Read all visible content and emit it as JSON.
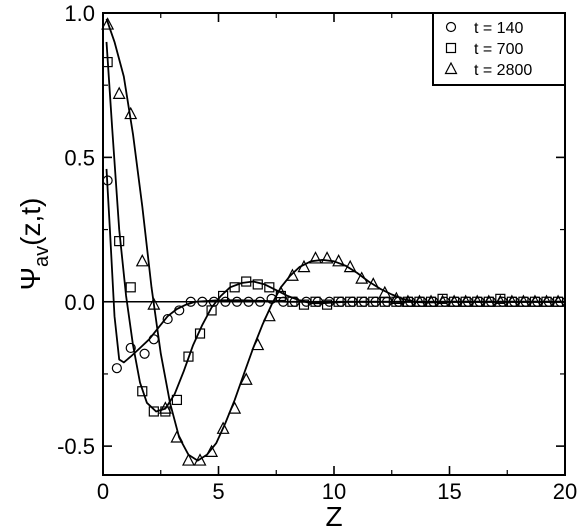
{
  "chart_data": {
    "type": "line",
    "xlabel": "Z",
    "ylabel_main": "Ψ",
    "ylabel_sub": "av",
    "ylabel_tail": "(z,t)",
    "xlim": [
      0,
      20
    ],
    "ylim": [
      -0.6,
      1.0
    ],
    "x_ticks": [
      0,
      5,
      10,
      15,
      20
    ],
    "x_tick_labels": [
      "0",
      "5",
      "10",
      "15",
      "20"
    ],
    "y_ticks": [
      1.0,
      0.5,
      0.0,
      -0.5
    ],
    "y_tick_labels": [
      "1.0",
      "0.5",
      "0.0",
      "-0.5"
    ],
    "grid": false,
    "zero_line": true,
    "legend_position": "top-right",
    "series": [
      {
        "name": "t = 140",
        "marker": "circle",
        "points": [
          [
            0.2,
            0.42
          ],
          [
            0.6,
            -0.23
          ],
          [
            1.2,
            -0.16
          ],
          [
            1.8,
            -0.18
          ],
          [
            2.2,
            -0.13
          ],
          [
            2.8,
            -0.06
          ],
          [
            3.3,
            -0.03
          ],
          [
            3.8,
            0.0
          ],
          [
            4.3,
            0.0
          ],
          [
            4.8,
            0.0
          ],
          [
            5.3,
            0.0
          ],
          [
            5.8,
            0.0
          ],
          [
            6.3,
            0.0
          ],
          [
            6.8,
            0.0
          ],
          [
            7.3,
            0.01
          ],
          [
            7.8,
            0.0
          ],
          [
            8.3,
            0.0
          ],
          [
            8.8,
            0.0
          ],
          [
            9.3,
            0.0
          ],
          [
            9.8,
            0.0
          ],
          [
            10.3,
            0.0
          ],
          [
            10.8,
            0.0
          ],
          [
            11.3,
            0.0
          ],
          [
            11.8,
            0.0
          ],
          [
            12.3,
            0.0
          ],
          [
            12.8,
            0.0
          ],
          [
            13.3,
            0.0
          ],
          [
            13.8,
            0.0
          ],
          [
            14.3,
            0.0
          ],
          [
            14.8,
            0.0
          ],
          [
            15.3,
            0.0
          ],
          [
            15.8,
            0.0
          ],
          [
            16.3,
            0.0
          ],
          [
            16.8,
            0.0
          ],
          [
            17.3,
            0.0
          ],
          [
            17.8,
            0.0
          ],
          [
            18.3,
            0.0
          ],
          [
            18.8,
            0.0
          ],
          [
            19.3,
            0.0
          ],
          [
            19.8,
            0.0
          ]
        ],
        "fit": [
          [
            0.15,
            0.46
          ],
          [
            0.3,
            0.25
          ],
          [
            0.5,
            -0.05
          ],
          [
            0.7,
            -0.2
          ],
          [
            0.9,
            -0.21
          ],
          [
            1.2,
            -0.19
          ],
          [
            1.6,
            -0.16
          ],
          [
            2.0,
            -0.13
          ],
          [
            2.4,
            -0.09
          ],
          [
            2.8,
            -0.05
          ],
          [
            3.2,
            -0.025
          ],
          [
            3.6,
            -0.01
          ],
          [
            4.0,
            0.0
          ],
          [
            5.0,
            0.005
          ],
          [
            6.0,
            0.005
          ],
          [
            7.0,
            0.003
          ],
          [
            8.0,
            0.0
          ],
          [
            10.0,
            0.0
          ],
          [
            20.0,
            0.0
          ]
        ]
      },
      {
        "name": "t = 700",
        "marker": "square",
        "points": [
          [
            0.2,
            0.83
          ],
          [
            0.7,
            0.21
          ],
          [
            1.2,
            0.05
          ],
          [
            1.7,
            -0.31
          ],
          [
            2.2,
            -0.38
          ],
          [
            2.7,
            -0.38
          ],
          [
            3.2,
            -0.34
          ],
          [
            3.7,
            -0.19
          ],
          [
            4.2,
            -0.11
          ],
          [
            4.7,
            -0.03
          ],
          [
            5.2,
            0.02
          ],
          [
            5.7,
            0.05
          ],
          [
            6.2,
            0.07
          ],
          [
            6.7,
            0.06
          ],
          [
            7.2,
            0.05
          ],
          [
            7.7,
            0.02
          ],
          [
            8.2,
            0.0
          ],
          [
            8.7,
            -0.01
          ],
          [
            9.2,
            0.0
          ],
          [
            9.7,
            -0.01
          ],
          [
            10.2,
            0.0
          ],
          [
            10.7,
            0.0
          ],
          [
            11.2,
            0.0
          ],
          [
            11.7,
            0.0
          ],
          [
            12.2,
            0.0
          ],
          [
            12.7,
            0.0
          ],
          [
            13.2,
            0.0
          ],
          [
            13.7,
            0.0
          ],
          [
            14.2,
            0.0
          ],
          [
            14.7,
            0.01
          ],
          [
            15.2,
            0.0
          ],
          [
            15.7,
            0.0
          ],
          [
            16.2,
            0.0
          ],
          [
            16.7,
            0.0
          ],
          [
            17.2,
            0.01
          ],
          [
            17.7,
            0.0
          ],
          [
            18.2,
            0.0
          ],
          [
            18.7,
            0.0
          ],
          [
            19.2,
            0.0
          ],
          [
            19.7,
            0.0
          ]
        ],
        "fit": [
          [
            0.15,
            0.9
          ],
          [
            0.4,
            0.6
          ],
          [
            0.7,
            0.25
          ],
          [
            1.0,
            0.02
          ],
          [
            1.3,
            -0.15
          ],
          [
            1.6,
            -0.28
          ],
          [
            1.9,
            -0.35
          ],
          [
            2.3,
            -0.38
          ],
          [
            2.7,
            -0.37
          ],
          [
            3.1,
            -0.32
          ],
          [
            3.5,
            -0.24
          ],
          [
            3.9,
            -0.15
          ],
          [
            4.3,
            -0.08
          ],
          [
            4.7,
            -0.02
          ],
          [
            5.1,
            0.02
          ],
          [
            5.5,
            0.05
          ],
          [
            6.0,
            0.065
          ],
          [
            6.5,
            0.07
          ],
          [
            7.0,
            0.06
          ],
          [
            7.5,
            0.04
          ],
          [
            8.0,
            0.02
          ],
          [
            8.5,
            0.005
          ],
          [
            9.0,
            -0.005
          ],
          [
            9.5,
            -0.005
          ],
          [
            10.5,
            0.0
          ],
          [
            20.0,
            0.0
          ]
        ]
      },
      {
        "name": "t = 2800",
        "marker": "triangle",
        "points": [
          [
            0.2,
            0.96
          ],
          [
            0.7,
            0.72
          ],
          [
            1.2,
            0.65
          ],
          [
            1.7,
            0.14
          ],
          [
            2.2,
            -0.01
          ],
          [
            2.7,
            -0.37
          ],
          [
            3.2,
            -0.47
          ],
          [
            3.7,
            -0.55
          ],
          [
            4.2,
            -0.55
          ],
          [
            4.7,
            -0.52
          ],
          [
            5.2,
            -0.44
          ],
          [
            5.7,
            -0.37
          ],
          [
            6.2,
            -0.27
          ],
          [
            6.7,
            -0.15
          ],
          [
            7.2,
            -0.05
          ],
          [
            7.7,
            0.03
          ],
          [
            8.2,
            0.09
          ],
          [
            8.7,
            0.12
          ],
          [
            9.2,
            0.15
          ],
          [
            9.7,
            0.15
          ],
          [
            10.2,
            0.14
          ],
          [
            10.7,
            0.12
          ],
          [
            11.2,
            0.08
          ],
          [
            11.7,
            0.06
          ],
          [
            12.2,
            0.03
          ],
          [
            12.7,
            0.01
          ],
          [
            13.2,
            0.0
          ],
          [
            13.7,
            0.0
          ],
          [
            14.2,
            0.0
          ],
          [
            14.7,
            0.0
          ],
          [
            15.2,
            0.0
          ],
          [
            15.7,
            0.0
          ],
          [
            16.2,
            0.0
          ],
          [
            16.7,
            0.0
          ],
          [
            17.2,
            0.0
          ],
          [
            17.7,
            0.0
          ],
          [
            18.2,
            0.0
          ],
          [
            18.7,
            0.0
          ],
          [
            19.2,
            0.0
          ],
          [
            19.7,
            0.0
          ]
        ],
        "fit": [
          [
            0.15,
            0.98
          ],
          [
            0.5,
            0.9
          ],
          [
            0.9,
            0.78
          ],
          [
            1.3,
            0.58
          ],
          [
            1.7,
            0.33
          ],
          [
            2.1,
            0.05
          ],
          [
            2.5,
            -0.18
          ],
          [
            2.9,
            -0.35
          ],
          [
            3.3,
            -0.47
          ],
          [
            3.7,
            -0.53
          ],
          [
            4.1,
            -0.55
          ],
          [
            4.5,
            -0.53
          ],
          [
            4.9,
            -0.49
          ],
          [
            5.3,
            -0.42
          ],
          [
            5.7,
            -0.34
          ],
          [
            6.1,
            -0.25
          ],
          [
            6.5,
            -0.16
          ],
          [
            6.9,
            -0.08
          ],
          [
            7.3,
            -0.01
          ],
          [
            7.7,
            0.05
          ],
          [
            8.1,
            0.09
          ],
          [
            8.5,
            0.12
          ],
          [
            9.0,
            0.14
          ],
          [
            9.5,
            0.145
          ],
          [
            10.0,
            0.14
          ],
          [
            10.5,
            0.125
          ],
          [
            11.0,
            0.1
          ],
          [
            11.5,
            0.07
          ],
          [
            12.0,
            0.045
          ],
          [
            12.5,
            0.025
          ],
          [
            13.0,
            0.01
          ],
          [
            13.5,
            0.0
          ],
          [
            14.0,
            -0.003
          ],
          [
            15.0,
            0.0
          ],
          [
            20.0,
            0.0
          ]
        ]
      }
    ]
  }
}
